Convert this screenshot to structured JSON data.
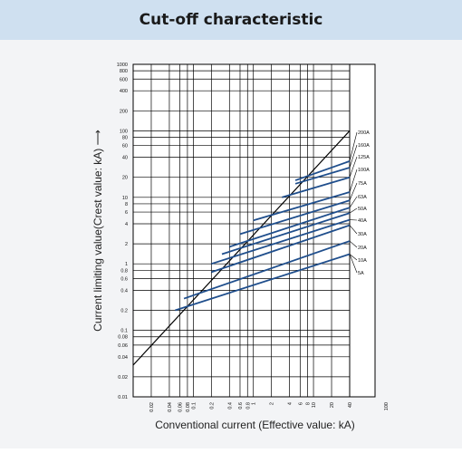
{
  "title": "Cut-off characteristic",
  "colors": {
    "header_bg": "#cfe0f0",
    "panel_bg": "#f3f4f6",
    "series": "#1f4e8c",
    "limit_line": "#000000"
  },
  "chart_data": {
    "type": "line",
    "title": "Cut-off characteristic",
    "xlabel": "Conventional current (Effective value: kA)",
    "ylabel": "Current limiting value(Crest value: kA) ⟶",
    "x_scale": "log",
    "y_scale": "log",
    "xlim": [
      0.01,
      100
    ],
    "ylim": [
      0.01,
      1000
    ],
    "grid": true,
    "x_ticks": [
      "0.02",
      "0.04",
      "0.06",
      "0.08",
      "0.1",
      "0.2",
      "0.4",
      "0.6",
      "0.8",
      "1",
      "2",
      "4",
      "6",
      "8",
      "10",
      "20",
      "40",
      "100"
    ],
    "y_ticks": [
      "1000",
      "800",
      "600",
      "400",
      "200",
      "100",
      "80",
      "60",
      "40",
      "20",
      "10",
      "8",
      "6",
      "4",
      "2",
      "1",
      "0.8",
      "0.6",
      "0.4",
      "0.2",
      "0.1",
      "0.08",
      "0.06",
      "0.04",
      "0.02",
      "0.01"
    ],
    "limit_line": {
      "x": [
        0.01,
        40
      ],
      "y": [
        0.03,
        100
      ]
    },
    "series": [
      {
        "name": "200A",
        "x": [
          5,
          40
        ],
        "y": [
          18,
          35
        ]
      },
      {
        "name": "160A",
        "x": [
          5,
          40
        ],
        "y": [
          16,
          28
        ]
      },
      {
        "name": "125A",
        "x": [
          3,
          40
        ],
        "y": [
          10,
          20
        ]
      },
      {
        "name": "100A",
        "x": [
          1,
          40
        ],
        "y": [
          4.5,
          12
        ]
      },
      {
        "name": "75A",
        "x": [
          0.6,
          40
        ],
        "y": [
          2.8,
          9
        ]
      },
      {
        "name": "63A",
        "x": [
          0.4,
          40
        ],
        "y": [
          1.8,
          7
        ]
      },
      {
        "name": "50A",
        "x": [
          0.3,
          40
        ],
        "y": [
          1.4,
          5.8
        ]
      },
      {
        "name": "40A",
        "x": [
          0.2,
          40
        ],
        "y": [
          1,
          4.6
        ]
      },
      {
        "name": "30A",
        "x": [
          0.2,
          40
        ],
        "y": [
          0.75,
          3.8
        ]
      },
      {
        "name": "20A",
        "x": [
          0.07,
          40
        ],
        "y": [
          0.3,
          2.2
        ]
      },
      {
        "name": "10A",
        "x": [
          0.05,
          40
        ],
        "y": [
          0.2,
          1.4
        ]
      },
      {
        "name": "5A",
        "x": [
          0.05,
          40
        ],
        "y": [
          0.2,
          1.4
        ]
      }
    ]
  }
}
